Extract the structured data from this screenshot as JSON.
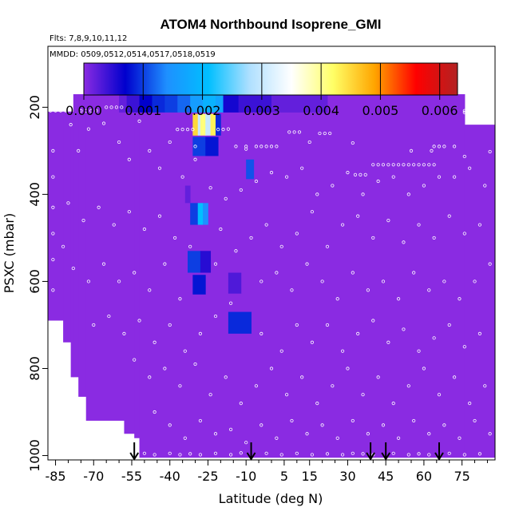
{
  "chart_data": {
    "type": "heatmap",
    "title": "ATOM4 Northbound Isoprene_GMI",
    "flights_note": "Flts: 7,8,9,10,11,12",
    "dates_note": "MMDD: 0509,0512,0514,0517,0518,0519",
    "xlabel": "Latitude (deg N)",
    "ylabel": "PSXC (mbar)",
    "xlim": [
      -88,
      88
    ],
    "ylim": [
      1010,
      60
    ],
    "x_ticks": [
      -85,
      -70,
      -55,
      -40,
      -25,
      -10,
      5,
      15,
      30,
      45,
      60,
      75
    ],
    "x_tick_labels": [
      "-85",
      "-70",
      "-55",
      "-40",
      "-25",
      "-10",
      "5",
      "15",
      "30",
      "45",
      "60",
      "75"
    ],
    "y_ticks": [
      200,
      400,
      600,
      800,
      1000
    ],
    "y_tick_labels": [
      "200",
      "400",
      "600",
      "800",
      "1000"
    ],
    "colorbar": {
      "min": 0.0,
      "max": 0.0063,
      "ticks": [
        0.0,
        0.001,
        0.002,
        0.003,
        0.004,
        0.005,
        0.006
      ],
      "tick_labels": [
        "0.000",
        "0.001",
        "0.002",
        "0.003",
        "0.004",
        "0.005",
        "0.006"
      ],
      "colors": [
        "#8A2BE2",
        "#0000CD",
        "#1E90FF",
        "#00BFFF",
        "#B0E0FF",
        "#FFFFFF",
        "#FFFF66",
        "#FFA500",
        "#FF0000",
        "#B22222"
      ]
    },
    "background_value": 0.0,
    "data_coverage_bottom_hpa_by_lat": [
      {
        "lat_min": -88,
        "lat_max": -82,
        "psxc_max": 690
      },
      {
        "lat_min": -82,
        "lat_max": -79,
        "psxc_max": 740
      },
      {
        "lat_min": -79,
        "lat_max": -76,
        "psxc_max": 820
      },
      {
        "lat_min": -76,
        "lat_max": -73,
        "psxc_max": 865
      },
      {
        "lat_min": -73,
        "lat_max": -58,
        "psxc_max": 920
      },
      {
        "lat_min": -58,
        "lat_max": -54,
        "psxc_max": 950
      },
      {
        "lat_min": -54,
        "lat_max": -52,
        "psxc_max": 960
      },
      {
        "lat_min": -52,
        "lat_max": 88,
        "psxc_max": 1005
      }
    ],
    "data_coverage_top_hpa_by_lat": [
      {
        "lat_min": -88,
        "lat_max": -78,
        "psxc_min": 210
      },
      {
        "lat_min": -78,
        "lat_max": 76,
        "psxc_min": 170
      },
      {
        "lat_min": 76,
        "lat_max": 88,
        "psxc_min": 240
      }
    ],
    "cells": [
      {
        "lat": [
          -60,
          -57
        ],
        "p": [
          170,
          212
        ],
        "value": 0.0002
      },
      {
        "lat": [
          -57,
          -52
        ],
        "p": [
          170,
          212
        ],
        "value": 0.0004
      },
      {
        "lat": [
          -52,
          -47
        ],
        "p": [
          170,
          212
        ],
        "value": 0.0007
      },
      {
        "lat": [
          -47,
          -42
        ],
        "p": [
          170,
          212
        ],
        "value": 0.0009
      },
      {
        "lat": [
          -42,
          -37
        ],
        "p": [
          170,
          212
        ],
        "value": 0.001
      },
      {
        "lat": [
          -37,
          -32
        ],
        "p": [
          170,
          212
        ],
        "value": 0.0012
      },
      {
        "lat": [
          -32,
          -27
        ],
        "p": [
          170,
          212
        ],
        "value": 0.0016
      },
      {
        "lat": [
          -27,
          -22
        ],
        "p": [
          170,
          212
        ],
        "value": 0.0019
      },
      {
        "lat": [
          -22,
          -19
        ],
        "p": [
          170,
          212
        ],
        "value": 0.0017
      },
      {
        "lat": [
          -19,
          -13
        ],
        "p": [
          170,
          212
        ],
        "value": 0.0006
      },
      {
        "lat": [
          -13,
          0
        ],
        "p": [
          170,
          212
        ],
        "value": 0.0004
      },
      {
        "lat": [
          0,
          22
        ],
        "p": [
          170,
          212
        ],
        "value": 0.0002
      },
      {
        "lat": [
          -31,
          -29
        ],
        "p": [
          215,
          265
        ],
        "value": 0.0045
      },
      {
        "lat": [
          -29,
          -28
        ],
        "p": [
          215,
          265
        ],
        "value": 0.003
      },
      {
        "lat": [
          -28,
          -26
        ],
        "p": [
          215,
          265
        ],
        "value": 0.0041
      },
      {
        "lat": [
          -26,
          -24
        ],
        "p": [
          215,
          265
        ],
        "value": 0.003
      },
      {
        "lat": [
          -24,
          -22
        ],
        "p": [
          215,
          265
        ],
        "value": 0.0043
      },
      {
        "lat": [
          -22,
          -20
        ],
        "p": [
          215,
          265
        ],
        "value": 0.0009
      },
      {
        "lat": [
          -31,
          -26
        ],
        "p": [
          268,
          312
        ],
        "value": 0.001
      },
      {
        "lat": [
          -26,
          -21
        ],
        "p": [
          268,
          312
        ],
        "value": 0.0008
      },
      {
        "lat": [
          -10,
          -7
        ],
        "p": [
          320,
          365
        ],
        "value": 0.0011
      },
      {
        "lat": [
          -34,
          -32
        ],
        "p": [
          380,
          420
        ],
        "value": 0.0002
      },
      {
        "lat": [
          -32,
          -29
        ],
        "p": [
          420,
          470
        ],
        "value": 0.001
      },
      {
        "lat": [
          -29,
          -27
        ],
        "p": [
          420,
          470
        ],
        "value": 0.0021
      },
      {
        "lat": [
          -27,
          -25
        ],
        "p": [
          420,
          470
        ],
        "value": 0.0014
      },
      {
        "lat": [
          -33,
          -28
        ],
        "p": [
          530,
          580
        ],
        "value": 0.001
      },
      {
        "lat": [
          -28,
          -24
        ],
        "p": [
          530,
          580
        ],
        "value": 0.0005
      },
      {
        "lat": [
          -31,
          -26
        ],
        "p": [
          585,
          630
        ],
        "value": 0.0008
      },
      {
        "lat": [
          -17,
          -12
        ],
        "p": [
          580,
          628
        ],
        "value": 0.0003
      },
      {
        "lat": [
          -17,
          -8
        ],
        "p": [
          670,
          720
        ],
        "value": 0.0009
      }
    ],
    "obs_markers": [
      [
        -87,
        208
      ],
      [
        -85,
        208
      ],
      [
        -83,
        208
      ],
      [
        -81,
        208
      ],
      [
        -75,
        208
      ],
      [
        -73,
        208
      ],
      [
        -71,
        208
      ],
      [
        -69,
        208
      ],
      [
        -65,
        200
      ],
      [
        -63,
        200
      ],
      [
        -61,
        200
      ],
      [
        -59,
        200
      ],
      [
        76,
        208
      ],
      [
        77,
        208
      ],
      [
        78,
        208
      ],
      [
        79,
        208
      ],
      [
        80,
        208
      ],
      [
        81,
        208
      ],
      [
        82,
        208
      ],
      [
        83,
        208
      ],
      [
        84,
        208
      ],
      [
        85,
        208
      ],
      [
        86,
        208
      ],
      [
        76,
        212
      ],
      [
        78,
        212
      ],
      [
        80,
        212
      ],
      [
        82,
        212
      ],
      [
        84,
        212
      ],
      [
        -37,
        251
      ],
      [
        -35,
        251
      ],
      [
        -33,
        251
      ],
      [
        -31,
        251
      ],
      [
        -17,
        250
      ],
      [
        -19,
        251
      ],
      [
        -21,
        251
      ],
      [
        7,
        257
      ],
      [
        9,
        257
      ],
      [
        11,
        257
      ],
      [
        19,
        260
      ],
      [
        21,
        260
      ],
      [
        23,
        260
      ],
      [
        -14,
        290
      ],
      [
        -10,
        290
      ],
      [
        -6,
        290
      ],
      [
        -4,
        290
      ],
      [
        -2,
        290
      ],
      [
        0,
        290
      ],
      [
        2,
        290
      ],
      [
        40,
        332
      ],
      [
        42,
        332
      ],
      [
        44,
        332
      ],
      [
        46,
        332
      ],
      [
        48,
        332
      ],
      [
        50,
        332
      ],
      [
        52,
        332
      ],
      [
        54,
        332
      ],
      [
        56,
        332
      ],
      [
        58,
        332
      ],
      [
        60,
        332
      ],
      [
        62,
        332
      ],
      [
        64,
        332
      ],
      [
        33,
        355
      ],
      [
        35,
        355
      ],
      [
        37,
        355
      ],
      [
        64,
        290
      ],
      [
        66,
        290
      ],
      [
        68,
        290
      ],
      [
        72,
        290
      ],
      [
        -66,
        237
      ],
      [
        -52,
        232
      ],
      [
        -40,
        280
      ],
      [
        -30,
        290
      ],
      [
        -10,
        296
      ],
      [
        15,
        280
      ],
      [
        32,
        282
      ],
      [
        55,
        300
      ],
      [
        63,
        300
      ],
      [
        76,
        313
      ],
      [
        86,
        302
      ],
      [
        -86,
        300
      ],
      [
        -86,
        360
      ],
      [
        -86,
        430
      ],
      [
        -86,
        490
      ],
      [
        -86,
        550
      ],
      [
        -86,
        620
      ],
      [
        -79,
        240
      ],
      [
        -76,
        300
      ],
      [
        -72,
        250
      ],
      [
        -60,
        280
      ],
      [
        -56,
        320
      ],
      [
        -48,
        300
      ],
      [
        -44,
        340
      ],
      [
        -35,
        360
      ],
      [
        -30,
        320
      ],
      [
        -24,
        385
      ],
      [
        -18,
        410
      ],
      [
        -12,
        390
      ],
      [
        -6,
        370
      ],
      [
        0,
        350
      ],
      [
        6,
        360
      ],
      [
        12,
        340
      ],
      [
        18,
        400
      ],
      [
        24,
        380
      ],
      [
        30,
        350
      ],
      [
        36,
        400
      ],
      [
        42,
        370
      ],
      [
        48,
        360
      ],
      [
        54,
        400
      ],
      [
        60,
        380
      ],
      [
        66,
        360
      ],
      [
        72,
        360
      ],
      [
        78,
        340
      ],
      [
        84,
        380
      ],
      [
        -80,
        420
      ],
      [
        -74,
        460
      ],
      [
        -68,
        430
      ],
      [
        -62,
        470
      ],
      [
        -56,
        440
      ],
      [
        -50,
        480
      ],
      [
        -44,
        450
      ],
      [
        -38,
        500
      ],
      [
        -32,
        520
      ],
      [
        -20,
        480
      ],
      [
        -14,
        530
      ],
      [
        -8,
        500
      ],
      [
        -2,
        470
      ],
      [
        4,
        520
      ],
      [
        10,
        490
      ],
      [
        16,
        440
      ],
      [
        22,
        520
      ],
      [
        28,
        470
      ],
      [
        34,
        450
      ],
      [
        40,
        500
      ],
      [
        46,
        460
      ],
      [
        52,
        510
      ],
      [
        58,
        470
      ],
      [
        64,
        500
      ],
      [
        70,
        450
      ],
      [
        76,
        490
      ],
      [
        82,
        470
      ],
      [
        -82,
        520
      ],
      [
        -78,
        570
      ],
      [
        -72,
        600
      ],
      [
        -66,
        560
      ],
      [
        -60,
        600
      ],
      [
        -54,
        580
      ],
      [
        -48,
        620
      ],
      [
        -42,
        560
      ],
      [
        -36,
        640
      ],
      [
        -22,
        560
      ],
      [
        -16,
        650
      ],
      [
        -4,
        600
      ],
      [
        2,
        580
      ],
      [
        8,
        620
      ],
      [
        14,
        560
      ],
      [
        20,
        600
      ],
      [
        26,
        640
      ],
      [
        32,
        580
      ],
      [
        38,
        620
      ],
      [
        44,
        600
      ],
      [
        50,
        640
      ],
      [
        56,
        580
      ],
      [
        62,
        620
      ],
      [
        68,
        600
      ],
      [
        74,
        640
      ],
      [
        80,
        600
      ],
      [
        86,
        560
      ],
      [
        -70,
        700
      ],
      [
        -64,
        680
      ],
      [
        -58,
        720
      ],
      [
        -52,
        690
      ],
      [
        -46,
        740
      ],
      [
        -40,
        700
      ],
      [
        -34,
        760
      ],
      [
        -28,
        720
      ],
      [
        -22,
        680
      ],
      [
        -4,
        720
      ],
      [
        4,
        760
      ],
      [
        10,
        700
      ],
      [
        16,
        740
      ],
      [
        22,
        700
      ],
      [
        28,
        760
      ],
      [
        34,
        720
      ],
      [
        40,
        690
      ],
      [
        46,
        740
      ],
      [
        52,
        710
      ],
      [
        58,
        760
      ],
      [
        64,
        730
      ],
      [
        70,
        700
      ],
      [
        76,
        750
      ],
      [
        82,
        720
      ],
      [
        -54,
        780
      ],
      [
        -48,
        820
      ],
      [
        -42,
        800
      ],
      [
        -36,
        840
      ],
      [
        -30,
        790
      ],
      [
        -24,
        860
      ],
      [
        -18,
        820
      ],
      [
        -12,
        880
      ],
      [
        -6,
        840
      ],
      [
        0,
        800
      ],
      [
        6,
        860
      ],
      [
        12,
        820
      ],
      [
        18,
        880
      ],
      [
        24,
        840
      ],
      [
        30,
        800
      ],
      [
        36,
        860
      ],
      [
        42,
        820
      ],
      [
        48,
        880
      ],
      [
        54,
        840
      ],
      [
        60,
        800
      ],
      [
        66,
        860
      ],
      [
        72,
        820
      ],
      [
        78,
        880
      ],
      [
        84,
        840
      ],
      [
        -46,
        900
      ],
      [
        -40,
        930
      ],
      [
        -34,
        960
      ],
      [
        -28,
        920
      ],
      [
        -22,
        950
      ],
      [
        -16,
        940
      ],
      [
        -10,
        970
      ],
      [
        -4,
        930
      ],
      [
        2,
        960
      ],
      [
        8,
        920
      ],
      [
        14,
        950
      ],
      [
        20,
        930
      ],
      [
        26,
        960
      ],
      [
        32,
        920
      ],
      [
        38,
        950
      ],
      [
        44,
        930
      ],
      [
        50,
        960
      ],
      [
        56,
        920
      ],
      [
        62,
        950
      ],
      [
        68,
        930
      ],
      [
        74,
        960
      ],
      [
        80,
        920
      ],
      [
        86,
        950
      ],
      [
        -50,
        995
      ],
      [
        -46,
        998
      ],
      [
        -40,
        995
      ],
      [
        -36,
        998
      ],
      [
        -32,
        996
      ],
      [
        -28,
        998
      ],
      [
        -22,
        995
      ],
      [
        -16,
        998
      ],
      [
        -12,
        994
      ],
      [
        -2,
        995
      ],
      [
        4,
        998
      ],
      [
        10,
        995
      ],
      [
        16,
        998
      ],
      [
        22,
        996
      ],
      [
        28,
        998
      ],
      [
        32,
        995
      ],
      [
        36,
        996
      ],
      [
        40,
        998
      ],
      [
        48,
        995
      ],
      [
        54,
        998
      ],
      [
        58,
        996
      ],
      [
        62,
        998
      ],
      [
        70,
        995
      ],
      [
        76,
        998
      ],
      [
        82,
        996
      ]
    ],
    "arrows_lat": [
      -54,
      -8,
      39,
      45,
      66
    ]
  }
}
